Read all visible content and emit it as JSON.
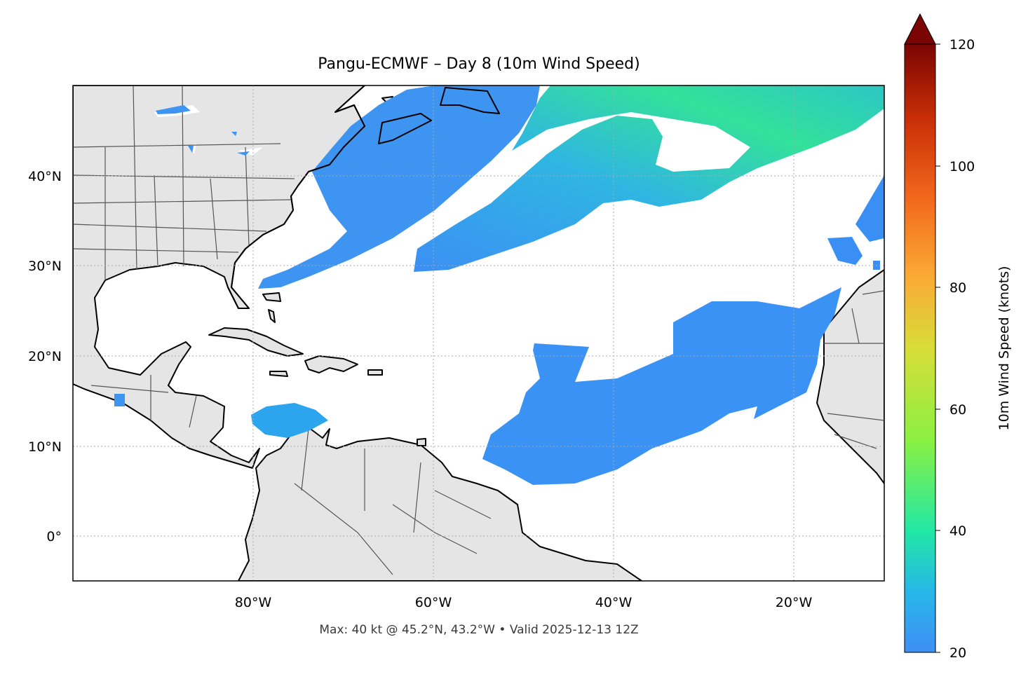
{
  "figure": {
    "title": "Pangu-ECMWF – Day 8 (10m Wind Speed)",
    "footer": "Max: 40 kt @ 45.2°N, 43.2°W • Valid 2025-12-13 12Z"
  },
  "map": {
    "projection": "PlateCarree",
    "extent": {
      "lon": [
        -100,
        -10
      ],
      "lat": [
        -5,
        50
      ]
    },
    "land_color": "#e5e5e5",
    "ocean_color": "#ffffff",
    "coastline_color": "#000000",
    "border_color": "#555555",
    "gridlines": true,
    "x_ticks": [
      "80°W",
      "60°W",
      "40°W",
      "20°W"
    ],
    "y_ticks": [
      "40°N",
      "30°N",
      "20°N",
      "10°N",
      "0°"
    ],
    "max_wind": {
      "value_kt": 40,
      "lat": 45.2,
      "lon": -43.2
    }
  },
  "colorbar": {
    "label": "10m Wind Speed (knots)",
    "min": 20,
    "max": 120,
    "extend": "max",
    "ticks": [
      "20",
      "40",
      "60",
      "80",
      "100",
      "120"
    ],
    "colormap": "turbo",
    "stops": [
      "#3f8ff5",
      "#27b7e8",
      "#22e8a4",
      "#8cf042",
      "#d8dd38",
      "#fba935",
      "#f2661c",
      "#c72e06",
      "#7a0403"
    ]
  },
  "wind_regions": [
    {
      "name": "western-atlantic-jet",
      "color": "#3d95f1"
    },
    {
      "name": "central-atlantic-jet",
      "color": "#2fb3e6"
    },
    {
      "name": "jet-core",
      "color": "#33e09a"
    },
    {
      "name": "subtropical-band",
      "color": "#3a8ff5"
    },
    {
      "name": "caribbean-low-level-jet",
      "color": "#2da4ee"
    }
  ]
}
